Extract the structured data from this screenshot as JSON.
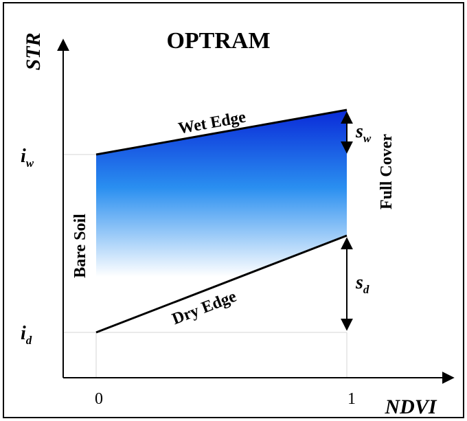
{
  "title": "OPTRAM",
  "axes": {
    "y_label": "STR",
    "x_label": "NDVI",
    "x_ticks": [
      "0",
      "1"
    ]
  },
  "intercepts": {
    "wet": {
      "base": "i",
      "sub": "w"
    },
    "dry": {
      "base": "i",
      "sub": "d"
    }
  },
  "slopes": {
    "wet": {
      "base": "s",
      "sub": "w"
    },
    "dry": {
      "base": "s",
      "sub": "d"
    }
  },
  "edges": {
    "wet": "Wet Edge",
    "dry": "Dry Edge"
  },
  "regions": {
    "left": "Bare Soil",
    "right": "Full Cover"
  },
  "colors": {
    "gradient_top": "#0a2ad8",
    "gradient_mid": "#2a8ff0",
    "gradient_bottom": "#ffffff",
    "border": "#000000",
    "guide": "#d4d4d4"
  }
}
